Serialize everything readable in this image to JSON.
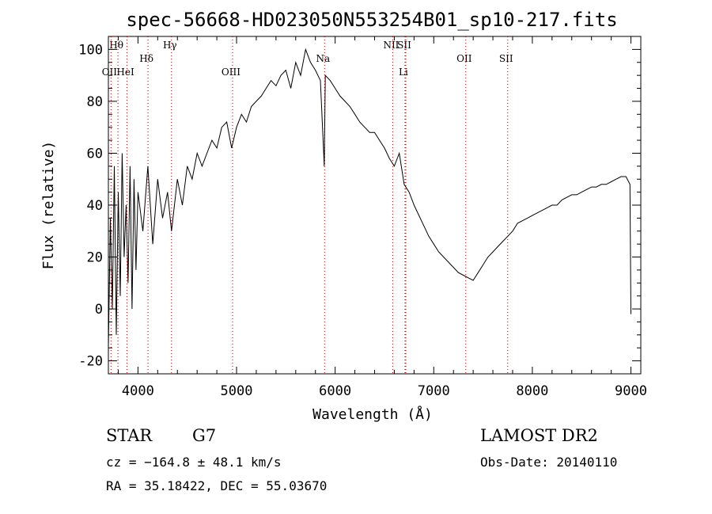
{
  "chart_data": {
    "type": "line",
    "title": "spec-56668-HD023050N553254B01_sp10-217.fits",
    "xlabel": "Wavelength (Å)",
    "ylabel": "Flux (relative)",
    "xlim": [
      3700,
      9100
    ],
    "ylim": [
      -25,
      105
    ],
    "xticks": [
      4000,
      5000,
      6000,
      7000,
      8000,
      9000
    ],
    "yticks": [
      -20,
      0,
      20,
      40,
      60,
      80,
      100
    ],
    "grid": false,
    "series": [
      {
        "x": [
          3700,
          3720,
          3740,
          3760,
          3780,
          3800,
          3820,
          3840,
          3860,
          3880,
          3900,
          3920,
          3940,
          3960,
          3980,
          4000,
          4050,
          4100,
          4150,
          4200,
          4250,
          4300,
          4340,
          4400,
          4450,
          4500,
          4550,
          4600,
          4650,
          4700,
          4750,
          4800,
          4850,
          4900,
          4950,
          5000,
          5050,
          5100,
          5150,
          5200,
          5250,
          5300,
          5350,
          5400,
          5450,
          5500,
          5550,
          5600,
          5650,
          5700,
          5750,
          5800,
          5850,
          5890,
          5900,
          5950,
          6000,
          6050,
          6100,
          6150,
          6200,
          6250,
          6300,
          6350,
          6400,
          6450,
          6500,
          6550,
          6600,
          6650,
          6700,
          6750,
          6800,
          6850,
          6900,
          6950,
          7000,
          7050,
          7100,
          7150,
          7200,
          7250,
          7300,
          7350,
          7400,
          7450,
          7500,
          7550,
          7600,
          7650,
          7700,
          7750,
          7800,
          7850,
          7900,
          7950,
          8000,
          8050,
          8100,
          8150,
          8200,
          8250,
          8300,
          8350,
          8400,
          8450,
          8500,
          8550,
          8600,
          8650,
          8700,
          8750,
          8800,
          8850,
          8900,
          8950,
          8990,
          9000
        ],
        "y": [
          -15,
          35,
          0,
          55,
          -10,
          45,
          5,
          60,
          20,
          40,
          10,
          55,
          0,
          50,
          15,
          45,
          30,
          55,
          25,
          50,
          35,
          45,
          30,
          50,
          40,
          55,
          50,
          60,
          55,
          60,
          65,
          62,
          70,
          72,
          62,
          70,
          75,
          72,
          78,
          80,
          82,
          85,
          88,
          86,
          90,
          92,
          85,
          95,
          90,
          100,
          95,
          92,
          88,
          55,
          90,
          88,
          85,
          82,
          80,
          78,
          75,
          72,
          70,
          68,
          68,
          65,
          62,
          58,
          55,
          60,
          48,
          45,
          40,
          36,
          32,
          28,
          25,
          22,
          20,
          18,
          16,
          14,
          13,
          12,
          11,
          14,
          17,
          20,
          22,
          24,
          26,
          28,
          30,
          33,
          34,
          35,
          36,
          37,
          38,
          39,
          40,
          40,
          42,
          43,
          44,
          44,
          45,
          46,
          47,
          47,
          48,
          48,
          49,
          50,
          51,
          51,
          48,
          -2
        ]
      }
    ],
    "lines": [
      {
        "label": "Hθ",
        "x": 3797,
        "row": 0
      },
      {
        "label": "OII",
        "x": 3727,
        "row": 2
      },
      {
        "label": "HeI",
        "x": 3889,
        "row": 2
      },
      {
        "label": "Hδ",
        "x": 4102,
        "row": 1
      },
      {
        "label": "Hγ",
        "x": 4340,
        "row": 0
      },
      {
        "label": "OIII",
        "x": 4959,
        "row": 2
      },
      {
        "label": "Na",
        "x": 5893,
        "row": 1
      },
      {
        "label": "NII",
        "x": 6584,
        "row": 0
      },
      {
        "label": "SII",
        "x": 6717,
        "row": 0
      },
      {
        "label": "Li",
        "x": 6708,
        "row": 2
      },
      {
        "label": "OII",
        "x": 7325,
        "row": 1
      },
      {
        "label": "SII",
        "x": 7750,
        "row": 1
      }
    ]
  },
  "info": {
    "obj_class": "STAR",
    "subclass": "G7",
    "survey": "LAMOST DR2",
    "cz": "cz = −164.8 ± 48.1 km/s",
    "obs_date": "Obs-Date: 20140110",
    "coords": "RA =  35.18422, DEC =  55.03670"
  }
}
